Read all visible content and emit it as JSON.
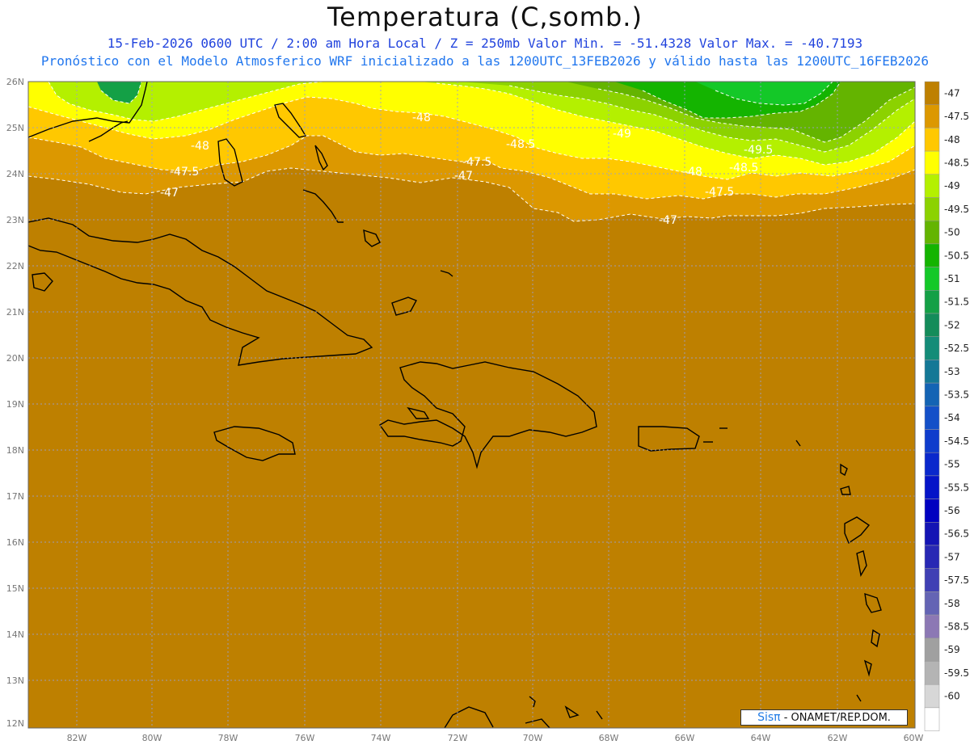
{
  "header": {
    "title": "Temperatura (C,somb.)",
    "line1": "15-Feb-2026  0600 UTC / 2:00 am Hora Local / Z = 250mb  Valor Min. = -51.4328  Valor Max. = -40.7193",
    "line2": "Pronóstico con el Modelo Atmosferico WRF inicializado a las 1200UTC_13FEB2026 y válido hasta las  1200UTC_16FEB2026"
  },
  "map": {
    "lat_labels": [
      "26N",
      "25N",
      "24N",
      "23N",
      "22N",
      "21N",
      "20N",
      "19N",
      "18N",
      "17N",
      "16N",
      "15N",
      "14N",
      "13N",
      "12N"
    ],
    "lon_labels": [
      "82W",
      "80W",
      "78W",
      "76W",
      "74W",
      "72W",
      "70W",
      "68W",
      "66W",
      "64W",
      "62W",
      "60W"
    ],
    "contour_labels": [
      "-47",
      "-47.5",
      "-48",
      "-48.5",
      "-49",
      "-49.5"
    ],
    "label_color": "#ffffff",
    "land_outline_color": "#000000",
    "background_color": "#be8000"
  },
  "colorbar": {
    "entries": [
      {
        "label": "-47",
        "color": "#be8000"
      },
      {
        "label": "-47.5",
        "color": "#dc9800"
      },
      {
        "label": "-48",
        "color": "#ffc800"
      },
      {
        "label": "-48.5",
        "color": "#ffff00"
      },
      {
        "label": "-49",
        "color": "#b4f000"
      },
      {
        "label": "-49.5",
        "color": "#8cd200"
      },
      {
        "label": "-50",
        "color": "#64b400"
      },
      {
        "label": "-50.5",
        "color": "#14b400"
      },
      {
        "label": "-51",
        "color": "#14c828"
      },
      {
        "label": "-51.5",
        "color": "#14a046"
      },
      {
        "label": "-52",
        "color": "#148c5a"
      },
      {
        "label": "-52.5",
        "color": "#148c78"
      },
      {
        "label": "-53",
        "color": "#147896"
      },
      {
        "label": "-53.5",
        "color": "#1464b4"
      },
      {
        "label": "-54",
        "color": "#1450c8"
      },
      {
        "label": "-54.5",
        "color": "#0f3ccc"
      },
      {
        "label": "-55",
        "color": "#0a28cc"
      },
      {
        "label": "-55.5",
        "color": "#0514c8"
      },
      {
        "label": "-56",
        "color": "#0000c0"
      },
      {
        "label": "-56.5",
        "color": "#1414b4"
      },
      {
        "label": "-57",
        "color": "#2828b4"
      },
      {
        "label": "-57.5",
        "color": "#4040b4"
      },
      {
        "label": "-58",
        "color": "#6464b4"
      },
      {
        "label": "-58.5",
        "color": "#8c78b4"
      },
      {
        "label": "-59",
        "color": "#a0a0a0"
      },
      {
        "label": "-59.5",
        "color": "#b4b4b4"
      },
      {
        "label": "-60",
        "color": "#d7d7d7"
      },
      {
        "label": "",
        "color": "#ffffff"
      }
    ]
  },
  "credit": {
    "brand": "Sisπ",
    "text": " - ONAMET/REP.DOM."
  }
}
